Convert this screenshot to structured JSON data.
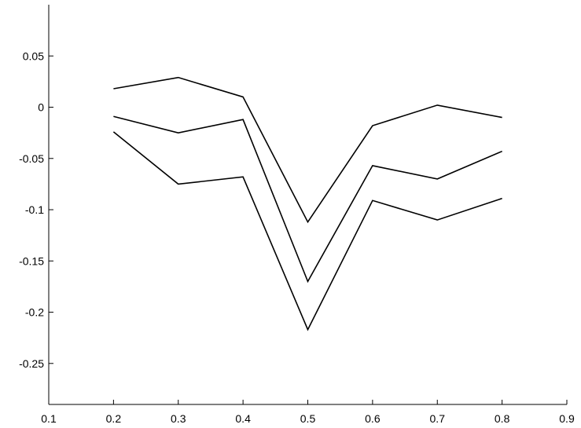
{
  "chart_data": {
    "type": "line",
    "title": "",
    "xlabel": "",
    "ylabel": "",
    "xlim": [
      0.1,
      0.9
    ],
    "ylim": [
      -0.29,
      0.1
    ],
    "grid": false,
    "x_ticks": [
      "0.1",
      "0.2",
      "0.3",
      "0.4",
      "0.5",
      "0.6",
      "0.7",
      "0.8",
      "0.9"
    ],
    "x_tick_values": [
      0.1,
      0.2,
      0.3,
      0.4,
      0.5,
      0.6,
      0.7,
      0.8,
      0.9
    ],
    "y_ticks": [
      "0.05",
      "0",
      "-0.05",
      "-0.1",
      "-0.15",
      "-0.2",
      "-0.25"
    ],
    "y_tick_values": [
      0.05,
      0,
      -0.05,
      -0.1,
      -0.15,
      -0.2,
      -0.25
    ],
    "x": [
      0.2,
      0.3,
      0.4,
      0.5,
      0.6,
      0.7,
      0.8
    ],
    "series": [
      {
        "values": [
          0.018,
          0.029,
          0.01,
          -0.112,
          -0.018,
          0.002,
          -0.01
        ]
      },
      {
        "values": [
          -0.009,
          -0.025,
          -0.012,
          -0.17,
          -0.057,
          -0.07,
          -0.043
        ]
      },
      {
        "values": [
          -0.024,
          -0.075,
          -0.068,
          -0.217,
          -0.091,
          -0.11,
          -0.089
        ]
      }
    ],
    "line_color": "#000000"
  }
}
